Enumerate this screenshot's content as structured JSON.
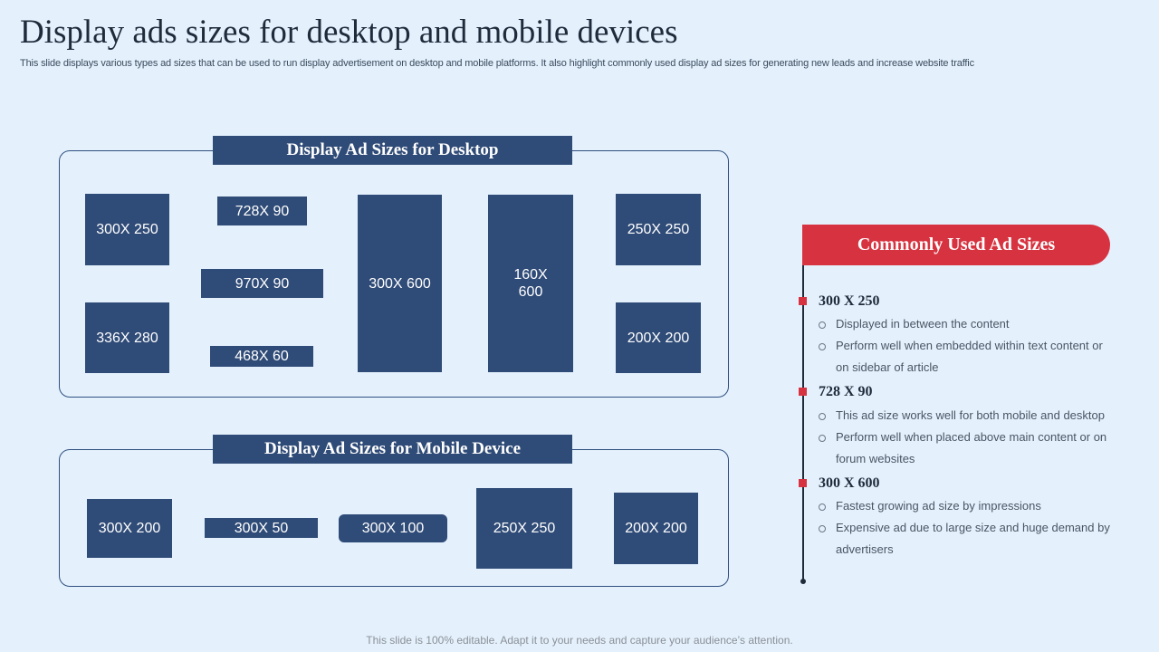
{
  "header": {
    "title": "Display ads sizes for desktop and mobile devices",
    "subtitle": "This slide displays various types ad sizes that can be used to run display advertisement on desktop and mobile platforms. It also highlight commonly used display ad sizes for generating new leads and increase website traffic"
  },
  "desktop": {
    "title": "Display Ad Sizes for Desktop",
    "boxes": [
      "300X 250",
      "728X 90",
      "970X 90",
      "468X 60",
      "336X 280",
      "300X 600",
      "160X",
      "600",
      "250X 250",
      "200X 200"
    ]
  },
  "mobile": {
    "title": "Display Ad Sizes for Mobile Device",
    "boxes": [
      "300X 200",
      "300X 50",
      "300X 100",
      "250X 250",
      "200X 200"
    ]
  },
  "common": {
    "title": "Commonly Used Ad Sizes",
    "items": [
      {
        "size": "300 X 250",
        "points": [
          "Displayed in between the content",
          "Perform well when embedded within text content or on sidebar of article"
        ]
      },
      {
        "size": "728 X 90",
        "points": [
          "This ad size works well for both mobile and desktop",
          "Perform well when placed above main content or on forum websites"
        ]
      },
      {
        "size": "300 X 600",
        "points": [
          "Fastest growing ad size by impressions",
          "Expensive ad due to large size and huge demand by advertisers"
        ]
      }
    ]
  },
  "footer": "This slide is 100% editable. Adapt it to your needs and capture your audience’s attention.",
  "colors": {
    "background": "#e4f1fd",
    "navy": "#2f4b77",
    "accent_red": "#d7323f"
  }
}
